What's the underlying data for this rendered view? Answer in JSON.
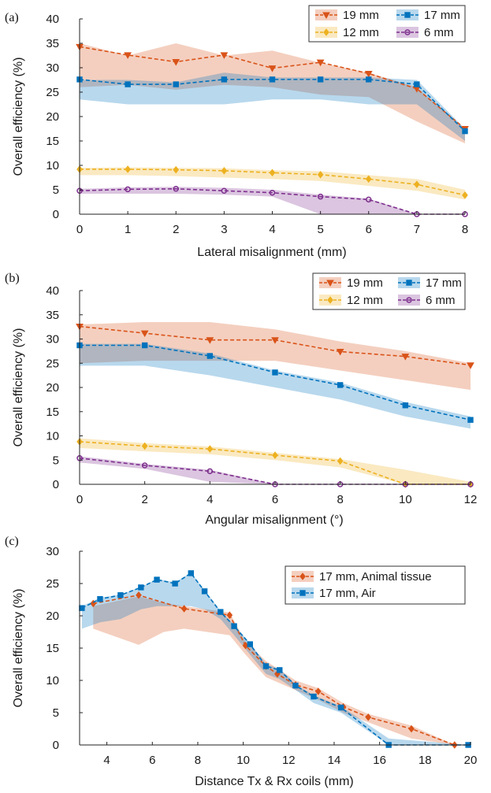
{
  "colors": {
    "19 mm": "#D95319",
    "17 mm": "#0072BD",
    "12 mm": "#EDB120",
    "6 mm": "#7E2F8E",
    "17 mm, Animal tissue": "#D95319",
    "17 mm, Air": "#0072BD"
  },
  "chart_data": [
    {
      "panel_label": "(a)",
      "type": "line",
      "xlabel": "Lateral misalignment (mm)",
      "ylabel": "Overall efficiency (%)",
      "xlim": [
        0,
        8
      ],
      "ylim": [
        0,
        40
      ],
      "xticks": [
        0,
        1,
        2,
        3,
        4,
        5,
        6,
        7,
        8
      ],
      "yticks": [
        0,
        5,
        10,
        15,
        20,
        25,
        30,
        35,
        40
      ],
      "legend_position": "top-right",
      "legend_columns": 2,
      "series": [
        {
          "name": "19 mm",
          "color": "#D95319",
          "marker": "triangle-down",
          "x": [
            0,
            1,
            2,
            3,
            4,
            5,
            6,
            7,
            8
          ],
          "y": [
            34.3,
            32.6,
            31.2,
            32.6,
            29.9,
            31.1,
            28.8,
            25.7,
            17.5
          ],
          "band_x": [
            0,
            1,
            2,
            3,
            4,
            5,
            6,
            7,
            8
          ],
          "band_low": [
            26,
            26.5,
            25.5,
            26.5,
            26,
            24.5,
            24,
            19,
            14.5
          ],
          "band_high": [
            35,
            32.5,
            35,
            32.5,
            33.5,
            31,
            29,
            26,
            17.5
          ]
        },
        {
          "name": "17 mm",
          "color": "#0072BD",
          "marker": "square",
          "x": [
            0,
            1,
            2,
            3,
            4,
            5,
            6,
            7,
            8
          ],
          "y": [
            27.6,
            26.6,
            26.6,
            27.6,
            27.6,
            27.6,
            27.6,
            26.6,
            17
          ],
          "band_x": [
            0,
            1,
            2,
            3,
            4,
            5,
            6,
            7,
            8
          ],
          "band_low": [
            23.5,
            22.5,
            22.5,
            22.5,
            23.5,
            23.5,
            22.5,
            22.5,
            15
          ],
          "band_high": [
            27.5,
            27.5,
            27,
            29,
            28,
            28,
            28,
            27.5,
            17.5
          ]
        },
        {
          "name": "12 mm",
          "color": "#EDB120",
          "marker": "diamond",
          "x": [
            0,
            1,
            2,
            3,
            4,
            5,
            6,
            7,
            8
          ],
          "y": [
            9.2,
            9.2,
            9.1,
            8.9,
            8.5,
            8.1,
            7.2,
            6.1,
            3.9
          ],
          "band_x": [
            0,
            1,
            2,
            3,
            4,
            5,
            6,
            7,
            8
          ],
          "band_low": [
            8,
            8,
            7.8,
            7.5,
            7.2,
            6.8,
            5.8,
            4.8,
            3
          ],
          "band_high": [
            9.5,
            9.6,
            9.5,
            9.4,
            9,
            8.8,
            8,
            7.2,
            5
          ]
        },
        {
          "name": "6 mm",
          "color": "#7E2F8E",
          "marker": "circle",
          "x": [
            0,
            1,
            2,
            3,
            4,
            5,
            6,
            7,
            8
          ],
          "y": [
            4.8,
            5.1,
            5.2,
            4.8,
            4.4,
            3.6,
            3.0,
            0,
            0
          ],
          "band_x": [
            0,
            1,
            2,
            3,
            4,
            5,
            6,
            7,
            8
          ],
          "band_low": [
            4.2,
            4.2,
            4.2,
            4,
            3.6,
            0,
            0,
            0,
            0
          ],
          "band_high": [
            5.2,
            5.5,
            5.6,
            5.4,
            5,
            4,
            3.2,
            0,
            0
          ]
        }
      ]
    },
    {
      "panel_label": "(b)",
      "type": "line",
      "xlabel": "Angular misalignment (°)",
      "ylabel": "Overall efficiency (%)",
      "xlim": [
        0,
        12
      ],
      "ylim": [
        0,
        40
      ],
      "xticks": [
        0,
        2,
        4,
        6,
        8,
        10,
        12
      ],
      "yticks": [
        0,
        5,
        10,
        15,
        20,
        25,
        30,
        35,
        40
      ],
      "legend_position": "top-right",
      "legend_columns": 2,
      "series": [
        {
          "name": "19 mm",
          "color": "#D95319",
          "marker": "triangle-down",
          "x": [
            0,
            2,
            4,
            6,
            8,
            10,
            12
          ],
          "y": [
            32.6,
            31.2,
            29.8,
            29.8,
            27.4,
            26.4,
            24.6
          ],
          "band_x": [
            0,
            2,
            4,
            6,
            8,
            10,
            12
          ],
          "band_low": [
            25,
            25.5,
            25.5,
            25.5,
            23.5,
            21.5,
            19.5
          ],
          "band_high": [
            33,
            33.5,
            33.5,
            32,
            29.5,
            27.5,
            25
          ]
        },
        {
          "name": "17 mm",
          "color": "#0072BD",
          "marker": "square",
          "x": [
            0,
            2,
            4,
            6,
            8,
            10,
            12
          ],
          "y": [
            28.7,
            28.7,
            26.5,
            23.1,
            20.5,
            16.3,
            13.3
          ],
          "band_x": [
            0,
            2,
            4,
            6,
            8,
            10,
            12
          ],
          "band_low": [
            24.5,
            24.5,
            22.5,
            20,
            17.5,
            14,
            11.5
          ],
          "band_high": [
            29,
            29,
            27,
            23.5,
            21,
            17,
            14
          ]
        },
        {
          "name": "12 mm",
          "color": "#EDB120",
          "marker": "diamond",
          "x": [
            0,
            2,
            4,
            6,
            8,
            10,
            12
          ],
          "y": [
            8.8,
            7.9,
            7.3,
            6.0,
            4.8,
            0,
            0
          ],
          "band_x": [
            0,
            2,
            4,
            6,
            8,
            10,
            12
          ],
          "band_low": [
            7.5,
            6.8,
            6.2,
            5,
            3.5,
            0,
            0
          ],
          "band_high": [
            9.5,
            8.5,
            7.8,
            6.5,
            5.2,
            3,
            0.5
          ]
        },
        {
          "name": "6 mm",
          "color": "#7E2F8E",
          "marker": "circle",
          "x": [
            0,
            2,
            4,
            6,
            8,
            10,
            12
          ],
          "y": [
            5.4,
            3.9,
            2.7,
            0,
            0,
            0,
            0
          ],
          "band_x": [
            0,
            2,
            4,
            6,
            8,
            10,
            12
          ],
          "band_low": [
            4.5,
            3.2,
            0.5,
            0,
            0,
            0,
            0
          ],
          "band_high": [
            5.8,
            4.2,
            3,
            0,
            0,
            0,
            0
          ]
        }
      ]
    },
    {
      "panel_label": "(c)",
      "type": "line",
      "xlabel": "Distance Tx & Rx coils (mm)",
      "ylabel": "Overall efficiency (%)",
      "xlim": [
        2.8,
        20
      ],
      "ylim": [
        0,
        30
      ],
      "xticks": [
        4,
        6,
        8,
        10,
        12,
        14,
        16,
        18,
        20
      ],
      "yticks": [
        0,
        5,
        10,
        15,
        20,
        25,
        30
      ],
      "legend_position": "top-right",
      "legend_columns": 1,
      "series": [
        {
          "name": "17 mm, Animal tissue",
          "color": "#D95319",
          "marker": "diamond",
          "x": [
            3.4,
            5.4,
            7.4,
            9.4,
            10.1,
            11.0,
            11.5,
            12.3,
            13.3,
            14.4,
            15.5,
            17.4,
            19.3
          ],
          "y": [
            21.9,
            23.2,
            21.1,
            20.1,
            15.4,
            12.2,
            11.0,
            9.3,
            8.3,
            5.9,
            4.3,
            2.5,
            0
          ],
          "band_x": [
            3.4,
            5.4,
            6.5,
            7.4,
            9.4,
            10.1,
            11.0,
            12.3,
            13.3,
            14.4,
            15.5,
            17.4,
            19.3
          ],
          "band_low": [
            18,
            15.5,
            17.5,
            18,
            17,
            14,
            10.5,
            8.5,
            7,
            5,
            3.5,
            1,
            0
          ],
          "band_high": [
            21.5,
            23,
            22,
            21.5,
            20.5,
            16,
            13,
            10,
            8.8,
            6.5,
            4.8,
            3,
            0
          ]
        },
        {
          "name": "17 mm, Air",
          "color": "#0072BD",
          "marker": "square",
          "x": [
            2.9,
            3.7,
            4.6,
            5.5,
            6.2,
            7.0,
            7.7,
            8.3,
            9.0,
            9.6,
            10.3,
            11.0,
            11.6,
            12.3,
            13.1,
            14.3,
            16.4,
            19.9
          ],
          "y": [
            21.2,
            22.6,
            23.2,
            24.4,
            25.6,
            25.0,
            26.6,
            23.8,
            20.6,
            18.4,
            15.6,
            12.2,
            11.6,
            9.2,
            7.5,
            5.8,
            0,
            0
          ],
          "band_x": [
            2.9,
            3.7,
            4.6,
            5.5,
            6.2,
            7.0,
            7.7,
            8.3,
            9.0,
            9.6,
            10.3,
            11.0,
            11.6,
            12.3,
            13.1,
            14.3,
            16.4,
            19.9
          ],
          "band_low": [
            18,
            19,
            19.5,
            21,
            21.5,
            21.5,
            21.5,
            21,
            19.5,
            17,
            14,
            11,
            10.2,
            8.5,
            6.5,
            5,
            0,
            0
          ],
          "band_high": [
            21.5,
            22.8,
            23.3,
            24.5,
            25.7,
            25.2,
            26.7,
            24,
            20.8,
            18.6,
            15.8,
            12.5,
            11.8,
            9.4,
            7.7,
            6,
            1,
            0
          ]
        }
      ]
    }
  ]
}
